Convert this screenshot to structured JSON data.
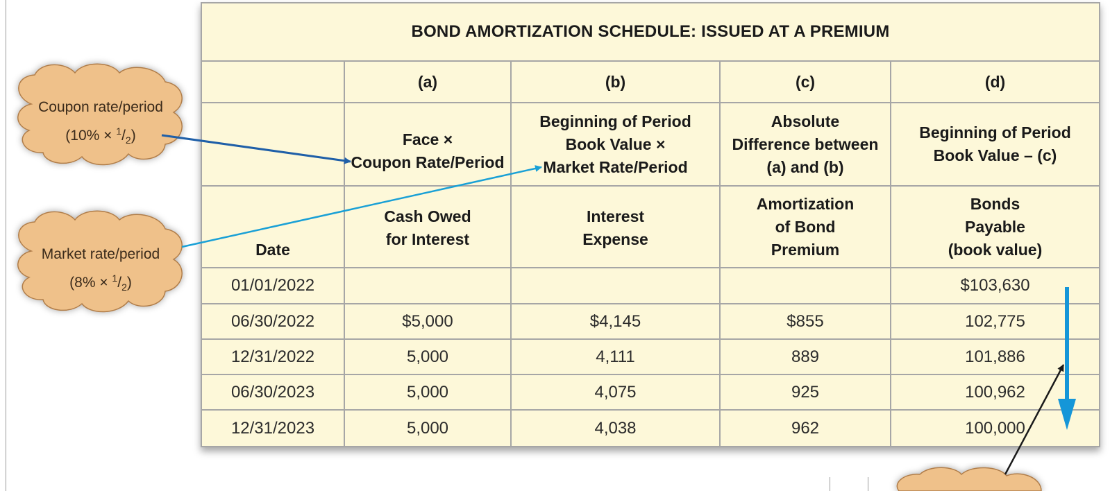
{
  "title": "BOND AMORTIZATION SCHEDULE: ISSUED AT A PREMIUM",
  "column_letters": [
    "",
    "(a)",
    "(b)",
    "(c)",
    "(d)"
  ],
  "formulas": [
    [],
    [
      "Face ×",
      "Coupon Rate/Period"
    ],
    [
      "Beginning of Period",
      "Book Value ×",
      "Market Rate/Period"
    ],
    [
      "Absolute",
      "Difference between",
      "(a) and (b)"
    ],
    [
      "Beginning of Period",
      "Book Value – (c)"
    ]
  ],
  "column_names": [
    [
      "Date"
    ],
    [
      "Cash Owed",
      "for Interest"
    ],
    [
      "Interest",
      "Expense"
    ],
    [
      "Amortization",
      "of Bond",
      "Premium"
    ],
    [
      "Bonds",
      "Payable",
      "(book value)"
    ]
  ],
  "rows": [
    [
      "01/01/2022",
      "",
      "",
      "",
      "$103,630"
    ],
    [
      "06/30/2022",
      "$5,000",
      "$4,145",
      "$855",
      "102,775"
    ],
    [
      "12/31/2022",
      "5,000",
      "4,111",
      "889",
      "101,886"
    ],
    [
      "06/30/2023",
      "5,000",
      "4,075",
      "925",
      "100,962"
    ],
    [
      "12/31/2023",
      "5,000",
      "4,038",
      "962",
      "100,000"
    ]
  ],
  "callouts": {
    "coupon": {
      "label": "Coupon rate/period",
      "rate": "(10% × ",
      "num": "1",
      "den": "2",
      "close": ")"
    },
    "market": {
      "label": "Market rate/period",
      "rate": "(8% × ",
      "num": "1",
      "den": "2",
      "close": ")"
    }
  },
  "colors": {
    "table_bg": "#fdf8d9",
    "grid": "#a6a6a6",
    "cloud_fill": "#efc18a",
    "coupon_arrow": "#1f5fa8",
    "market_arrow": "#19a0d6",
    "book_value_arrow": "#1596d8",
    "callout_arrow": "#1a1a1a"
  }
}
